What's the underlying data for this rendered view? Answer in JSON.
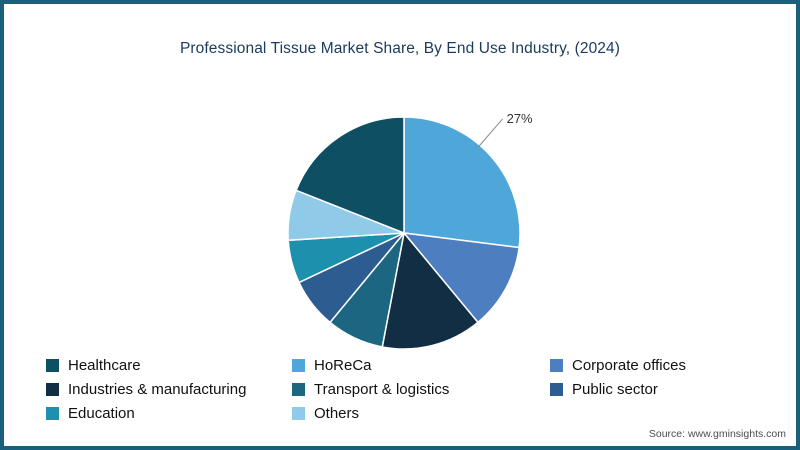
{
  "title": "Professional Tissue Market Share, By End Use Industry, (2024)",
  "source_text": "Source: www.gminsights.com",
  "colors": {
    "border": "#19607c",
    "title_text": "#1b3a5c",
    "legend_text": "#111111",
    "callout_text": "#333333",
    "callout_line": "#8a8a8a",
    "source_text": "#4d4d4d",
    "background": "#ffffff"
  },
  "chart_data": {
    "type": "pie",
    "title": "Professional Tissue Market Share, By End Use Industry, (2024)",
    "unit": "%",
    "annotation": {
      "slice": "HoReCa",
      "text": "27%"
    },
    "slices_clockwise_from_top": [
      {
        "label": "HoReCa",
        "value": 27,
        "color": "#4fa6d9"
      },
      {
        "label": "Corporate offices",
        "value": 12,
        "color": "#4d7ec0"
      },
      {
        "label": "Industries & manufacturing",
        "value": 14,
        "color": "#112e45"
      },
      {
        "label": "Transport & logistics",
        "value": 8,
        "color": "#1d6681"
      },
      {
        "label": "Public sector",
        "value": 7,
        "color": "#2d5c90"
      },
      {
        "label": "Education",
        "value": 6,
        "color": "#1d90ad"
      },
      {
        "label": "Others",
        "value": 7,
        "color": "#8fcbe8"
      },
      {
        "label": "Healthcare",
        "value": 19,
        "color": "#0e4f63"
      }
    ],
    "legend": {
      "position": "bottom",
      "columns": 3,
      "order": [
        "Healthcare",
        "HoReCa",
        "Corporate offices",
        "Industries & manufacturing",
        "Transport & logistics",
        "Public sector",
        "Education",
        "Others"
      ]
    }
  }
}
